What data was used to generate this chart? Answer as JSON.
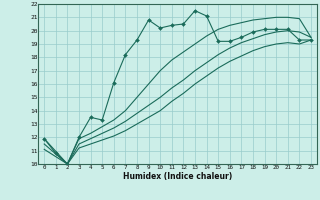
{
  "title": "",
  "xlabel": "Humidex (Indice chaleur)",
  "xlim": [
    -0.5,
    23.5
  ],
  "ylim": [
    10,
    22
  ],
  "background_color": "#cceee8",
  "grid_color": "#99cccc",
  "line_color": "#1a6b5a",
  "xticks": [
    0,
    1,
    2,
    3,
    4,
    5,
    6,
    7,
    8,
    9,
    10,
    11,
    12,
    13,
    14,
    15,
    16,
    17,
    18,
    19,
    20,
    21,
    22,
    23
  ],
  "yticks": [
    10,
    11,
    12,
    13,
    14,
    15,
    16,
    17,
    18,
    19,
    20,
    21,
    22
  ],
  "series": [
    {
      "x": [
        0,
        1,
        2,
        3,
        4,
        5,
        6,
        7,
        8,
        9,
        10,
        11,
        12,
        13,
        14,
        15,
        16,
        17,
        18,
        19,
        20,
        21,
        22,
        23
      ],
      "y": [
        11.9,
        10.8,
        10.0,
        12.0,
        13.5,
        13.3,
        16.1,
        18.2,
        19.3,
        20.8,
        20.2,
        20.4,
        20.5,
        21.5,
        21.1,
        19.2,
        19.2,
        19.5,
        19.9,
        20.1,
        20.1,
        20.1,
        19.3,
        19.3
      ],
      "has_markers": true
    },
    {
      "x": [
        0,
        2,
        3,
        4,
        5,
        6,
        7,
        8,
        9,
        10,
        11,
        12,
        13,
        14,
        15,
        16,
        17,
        18,
        19,
        20,
        21,
        22,
        23
      ],
      "y": [
        11.9,
        10.0,
        11.9,
        12.3,
        12.8,
        13.3,
        14.0,
        15.0,
        16.0,
        17.0,
        17.8,
        18.4,
        19.0,
        19.6,
        20.1,
        20.4,
        20.6,
        20.8,
        20.9,
        21.0,
        21.0,
        20.9,
        19.5
      ],
      "has_markers": false
    },
    {
      "x": [
        0,
        2,
        3,
        4,
        5,
        6,
        7,
        8,
        9,
        10,
        11,
        12,
        13,
        14,
        15,
        16,
        17,
        18,
        19,
        20,
        21,
        22,
        23
      ],
      "y": [
        11.5,
        10.0,
        11.5,
        11.9,
        12.3,
        12.7,
        13.2,
        13.8,
        14.4,
        15.0,
        15.7,
        16.3,
        17.0,
        17.6,
        18.2,
        18.7,
        19.1,
        19.4,
        19.7,
        19.9,
        20.0,
        19.9,
        19.5
      ],
      "has_markers": false
    },
    {
      "x": [
        0,
        2,
        3,
        4,
        5,
        6,
        7,
        8,
        9,
        10,
        11,
        12,
        13,
        14,
        15,
        16,
        17,
        18,
        19,
        20,
        21,
        22,
        23
      ],
      "y": [
        11.1,
        10.0,
        11.2,
        11.5,
        11.8,
        12.1,
        12.5,
        13.0,
        13.5,
        14.0,
        14.7,
        15.3,
        16.0,
        16.6,
        17.2,
        17.7,
        18.1,
        18.5,
        18.8,
        19.0,
        19.1,
        19.0,
        19.3
      ],
      "has_markers": false
    }
  ]
}
